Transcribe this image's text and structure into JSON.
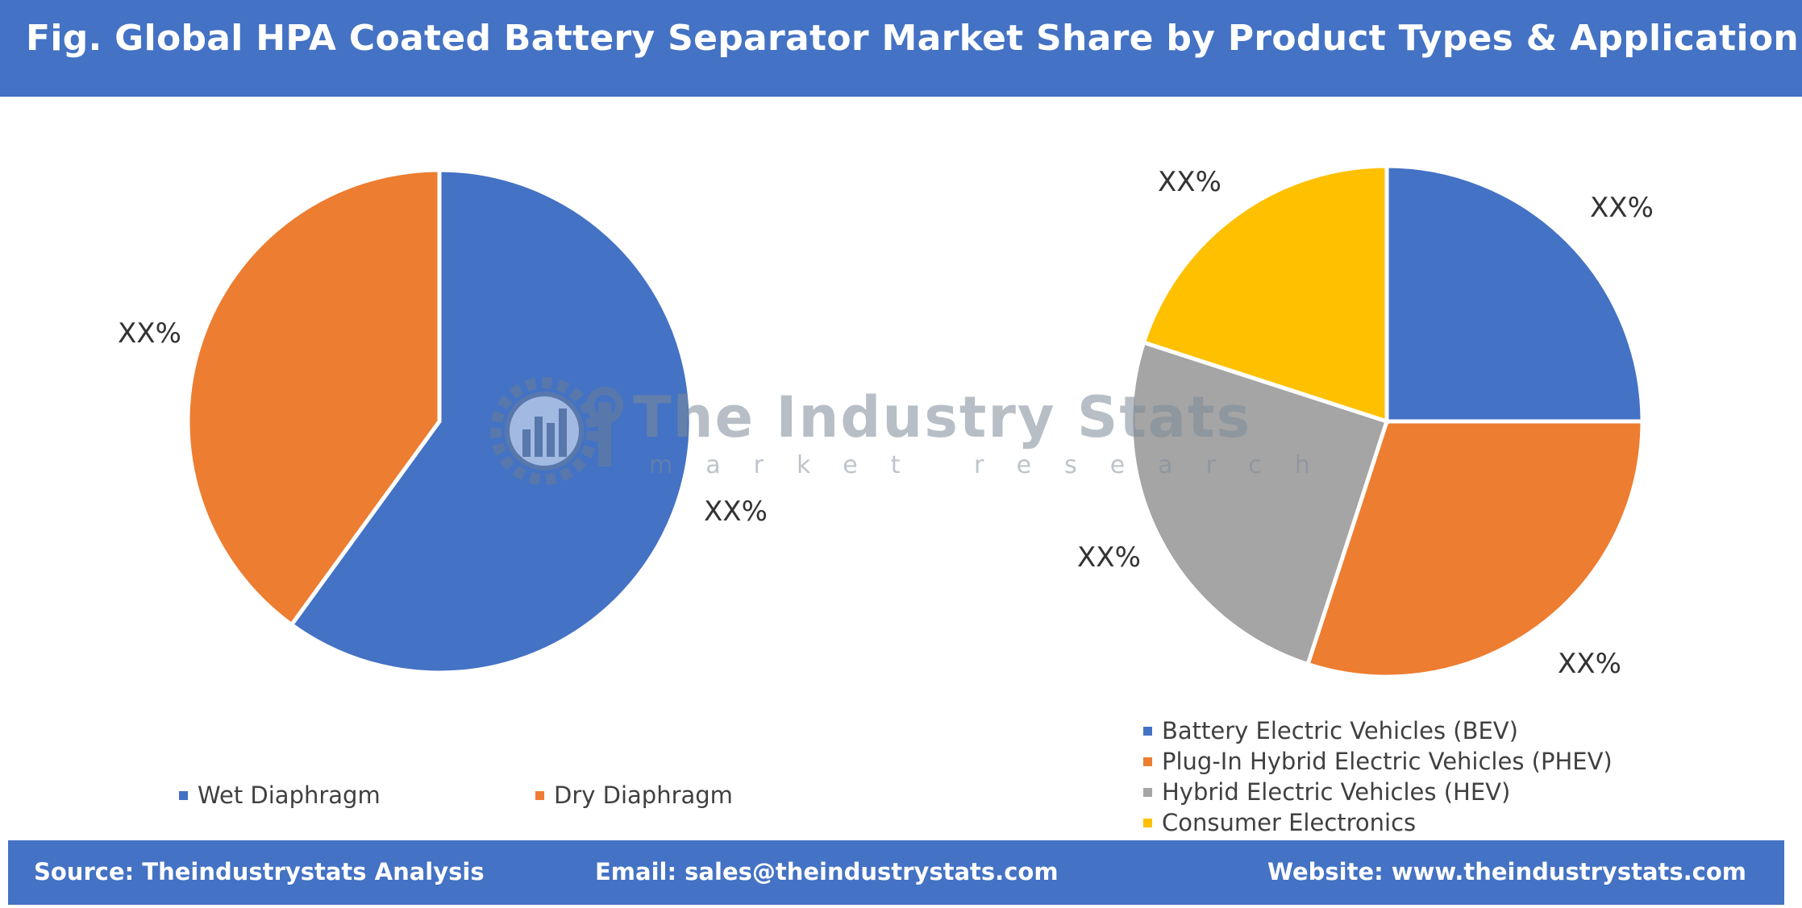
{
  "header": {
    "title": "Fig. Global HPA Coated Battery Separator Market Share by Product Types & Application"
  },
  "chart_data": [
    {
      "type": "pie",
      "categories": [
        "Wet Diaphragm",
        "Dry Diaphragm"
      ],
      "values": [
        60,
        40
      ],
      "labels": [
        "XX%",
        "XX%"
      ],
      "colors": [
        "#4472c4",
        "#ed7d31"
      ],
      "legend": "bottom"
    },
    {
      "type": "pie",
      "categories": [
        "Battery Electric Vehicles (BEV)",
        "Plug-In Hybrid Electric Vehicles (PHEV)",
        "Hybrid Electric Vehicles (HEV)",
        "Consumer Electronics"
      ],
      "values": [
        25,
        30,
        25,
        20
      ],
      "labels": [
        "XX%",
        "XX%",
        "XX%",
        "XX%"
      ],
      "colors": [
        "#4472c4",
        "#ed7d31",
        "#a5a5a5",
        "#ffc000"
      ],
      "legend": "bottom-left"
    }
  ],
  "watermark": {
    "title": "The Industry Stats",
    "subtitle": "market research"
  },
  "footer": {
    "source": "Source: Theindustrystats Analysis",
    "email": "Email: sales@theindustrystats.com",
    "website": "Website: www.theindustrystats.com"
  }
}
